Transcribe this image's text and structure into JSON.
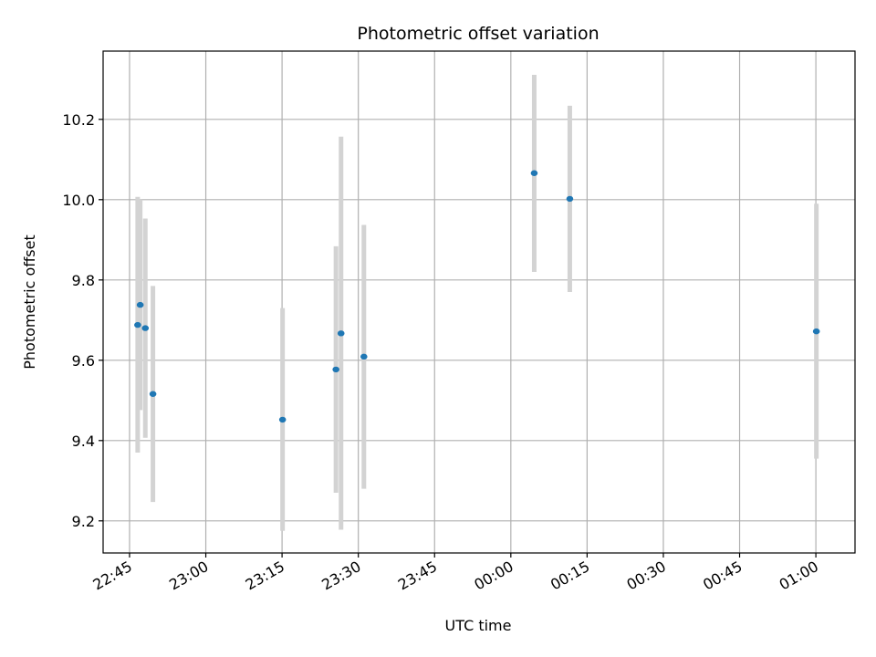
{
  "chart_data": {
    "type": "scatter",
    "title": "Photometric offset variation",
    "xlabel": "UTC time",
    "ylabel": "Photometric offset",
    "x_ticks": [
      "22:45",
      "23:00",
      "23:15",
      "23:30",
      "23:45",
      "00:00",
      "00:15",
      "00:30",
      "00:45",
      "01:00"
    ],
    "x_tick_minutes": [
      0,
      15,
      30,
      45,
      60,
      75,
      90,
      105,
      120,
      135
    ],
    "xlim_minutes": [
      -5.2,
      142.7
    ],
    "y_ticks": [
      "9.2",
      "9.4",
      "9.6",
      "9.8",
      "10.0",
      "10.2"
    ],
    "ylim": [
      9.12,
      10.37
    ],
    "grid": true,
    "point_color": "#1f77b4",
    "errorbar_color": "#d3d3d3",
    "points": [
      {
        "x_min": 1.6,
        "y": 9.688,
        "err_low": 9.37,
        "err_high": 10.007
      },
      {
        "x_min": 2.1,
        "y": 9.738,
        "err_low": 9.476,
        "err_high": 10.0
      },
      {
        "x_min": 3.1,
        "y": 9.68,
        "err_low": 9.407,
        "err_high": 9.953
      },
      {
        "x_min": 4.6,
        "y": 9.516,
        "err_low": 9.247,
        "err_high": 9.785
      },
      {
        "x_min": 30.1,
        "y": 9.452,
        "err_low": 9.175,
        "err_high": 9.73
      },
      {
        "x_min": 40.6,
        "y": 9.577,
        "err_low": 9.27,
        "err_high": 9.884
      },
      {
        "x_min": 41.6,
        "y": 9.667,
        "err_low": 9.178,
        "err_high": 10.157
      },
      {
        "x_min": 46.1,
        "y": 9.609,
        "err_low": 9.28,
        "err_high": 9.937
      },
      {
        "x_min": 79.6,
        "y": 10.066,
        "err_low": 9.82,
        "err_high": 10.311
      },
      {
        "x_min": 86.6,
        "y": 10.002,
        "err_low": 9.77,
        "err_high": 10.234
      },
      {
        "x_min": 135.1,
        "y": 9.672,
        "err_low": 9.355,
        "err_high": 9.99
      }
    ]
  }
}
